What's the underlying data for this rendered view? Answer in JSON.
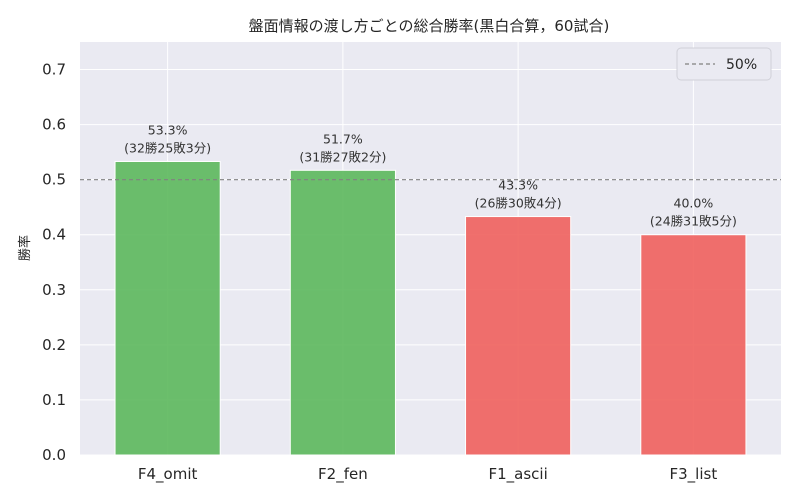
{
  "chart_data": {
    "type": "bar",
    "title": "盤面情報の渡し方ごとの総合勝率(黒白合算，60試合)",
    "xlabel": "",
    "ylabel": "勝率",
    "categories": [
      "F4_omit",
      "F2_fen",
      "F1_ascii",
      "F3_list"
    ],
    "values": [
      0.533,
      0.517,
      0.433,
      0.4
    ],
    "value_labels": [
      "53.3%",
      "51.7%",
      "43.3%",
      "40.0%"
    ],
    "record_labels": [
      "(32勝25敗3分)",
      "(31勝27敗2分)",
      "(26勝30敗4分)",
      "(24勝31敗5分)"
    ],
    "bar_colors": [
      "#5cb85c",
      "#5cb85c",
      "#f0605d",
      "#f0605d"
    ],
    "ylim": [
      0,
      0.75
    ],
    "yticks": [
      0.0,
      0.1,
      0.2,
      0.3,
      0.4,
      0.5,
      0.6,
      0.7
    ],
    "ytick_labels": [
      "0.0",
      "0.1",
      "0.2",
      "0.3",
      "0.4",
      "0.5",
      "0.6",
      "0.7"
    ],
    "reference_line": {
      "value": 0.5,
      "label": "50%",
      "color": "#808080",
      "style": "dashed"
    },
    "grid": true,
    "legend": {
      "position": "top-right",
      "entries": [
        "50%"
      ]
    },
    "background_color": "#eaeaf2",
    "grid_color": "#ffffff"
  }
}
